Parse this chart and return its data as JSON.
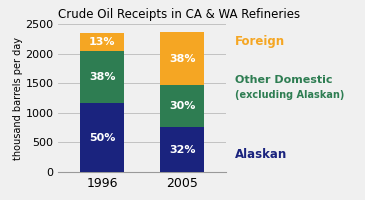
{
  "title": "Crude Oil Receipts in CA & WA Refineries",
  "ylabel": "thousand barrels per day",
  "categories": [
    "1996",
    "2005"
  ],
  "alaskan": [
    1165,
    755
  ],
  "other_domestic": [
    885,
    708
  ],
  "foreign": [
    303,
    897
  ],
  "alaskan_pct": [
    "50%",
    "32%"
  ],
  "other_domestic_pct": [
    "38%",
    "30%"
  ],
  "foreign_pct": [
    "13%",
    "38%"
  ],
  "color_alaskan": "#1a237e",
  "color_other_domestic": "#2e7d52",
  "color_foreign": "#f5a623",
  "ylim": [
    0,
    2500
  ],
  "yticks": [
    0,
    500,
    1000,
    1500,
    2000,
    2500
  ],
  "label_alaskan": "Alaskan",
  "label_other_domestic_line1": "Other Domestic",
  "label_other_domestic_line2": "(excluding Alaskan)",
  "label_foreign": "Foreign",
  "bar_width": 0.55,
  "text_color_white": "#ffffff",
  "text_color_orange": "#f5a623",
  "text_color_green": "#2e7d52",
  "text_color_navy": "#1a237e",
  "bg_color": "#f0f0f0"
}
